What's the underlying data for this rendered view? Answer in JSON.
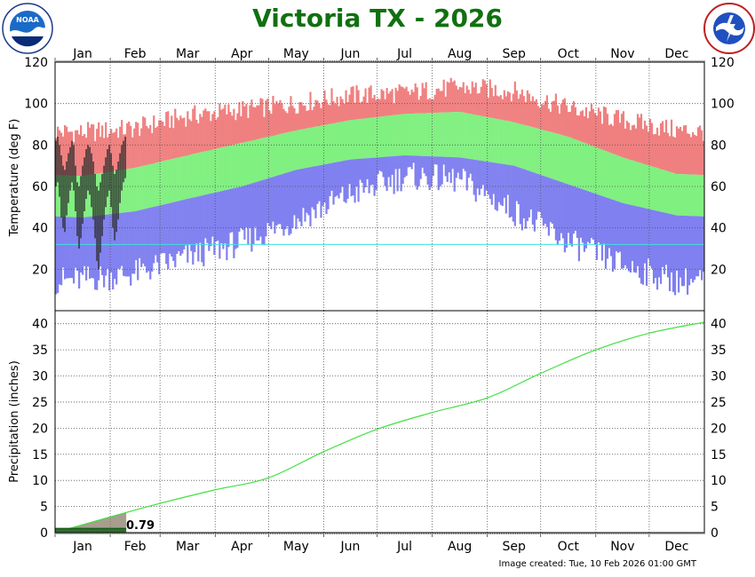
{
  "title": "Victoria TX - 2026",
  "footer": "Image created: Tue, 10 Feb 2026 01:00 GMT",
  "logos": {
    "left": "NOAA",
    "right": "NATIONAL WEATHER SERVICE"
  },
  "colors": {
    "title": "#107010",
    "record_high": "#f08080",
    "normal_range": "#80f080",
    "record_low": "#8080f0",
    "observed": "#2a2a2a",
    "freezing_line": "#40e0e0",
    "normal_precip": "#40e040",
    "observed_precip": "#8b7d6b"
  },
  "chart_data": [
    {
      "type": "bar",
      "name": "temperature",
      "ylabel": "Temperature (deg F)",
      "ylim": [
        0,
        120
      ],
      "yticks": [
        20,
        40,
        60,
        80,
        100,
        120
      ],
      "months": [
        "Jan",
        "Feb",
        "Mar",
        "Apr",
        "May",
        "Jun",
        "Jul",
        "Aug",
        "Sep",
        "Oct",
        "Nov",
        "Dec"
      ],
      "freezing_line": 32,
      "grid": true,
      "normal_high_monthly": [
        65,
        69,
        75,
        81,
        87,
        92,
        95,
        96,
        91,
        84,
        74,
        66
      ],
      "normal_low_monthly": [
        45,
        48,
        54,
        60,
        68,
        73,
        75,
        74,
        70,
        61,
        52,
        46
      ],
      "record_high_monthly": [
        86,
        88,
        94,
        97,
        100,
        104,
        105,
        108,
        106,
        98,
        92,
        87
      ],
      "record_low_monthly": [
        15,
        18,
        26,
        33,
        44,
        56,
        65,
        63,
        48,
        33,
        22,
        14
      ],
      "observed_days": 40,
      "observed_high_approx": [
        82,
        84,
        80,
        75,
        70,
        68,
        72,
        76,
        79,
        82,
        80,
        70,
        62,
        60,
        65,
        70,
        74,
        78,
        80,
        79,
        76,
        72,
        66,
        60,
        58,
        62,
        66,
        70,
        74,
        78,
        80,
        76,
        70,
        66,
        68,
        72,
        76,
        80,
        82,
        84
      ],
      "observed_low_approx": [
        60,
        62,
        55,
        45,
        40,
        38,
        46,
        52,
        58,
        62,
        58,
        48,
        36,
        30,
        35,
        42,
        48,
        54,
        58,
        56,
        50,
        44,
        35,
        24,
        20,
        28,
        36,
        44,
        50,
        55,
        58,
        50,
        40,
        34,
        38,
        44,
        52,
        58,
        62,
        64
      ]
    },
    {
      "type": "area",
      "name": "precipitation",
      "ylabel": "Precipitation (inches)",
      "ylim": [
        0,
        42.5
      ],
      "yticks": [
        0,
        5,
        10,
        15,
        20,
        25,
        30,
        35,
        40
      ],
      "normal_cumulative_month_end": [
        3.0,
        5.6,
        8.2,
        10.5,
        15.5,
        19.8,
        23.0,
        25.8,
        30.5,
        35.0,
        38.2,
        40.3
      ],
      "observed_total": 0.79,
      "observed_label": "0.79",
      "observed_days": 40
    }
  ]
}
